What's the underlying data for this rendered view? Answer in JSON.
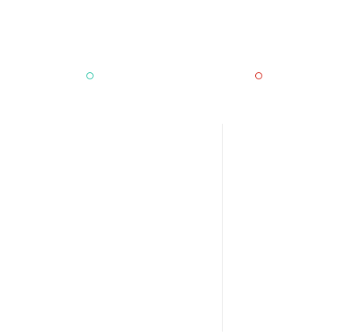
{
  "colors": {
    "background": "#ffffff",
    "left_marker": "#2ec4a8",
    "right_marker": "#d42a1e",
    "divider": "#e8e8e8"
  },
  "icons": {
    "left_marker": "ring-icon",
    "right_marker": "ring-icon"
  }
}
